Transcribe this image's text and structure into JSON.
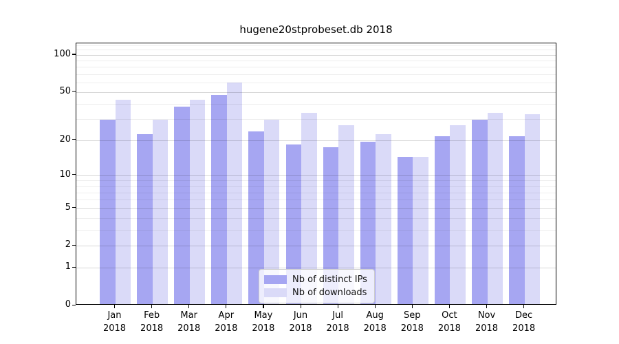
{
  "chart_data": {
    "type": "bar",
    "title": "hugene20stprobeset.db 2018",
    "categories": [
      "Jan",
      "Feb",
      "Mar",
      "Apr",
      "May",
      "Jun",
      "Jul",
      "Aug",
      "Sep",
      "Oct",
      "Nov",
      "Dec"
    ],
    "year_label": "2018",
    "series": [
      {
        "name": "Nb of distinct IPs",
        "color": "#a6a6f2",
        "values": [
          29,
          22,
          37,
          46,
          23,
          18,
          17,
          19,
          14,
          21,
          29,
          21
        ]
      },
      {
        "name": "Nb of downloads",
        "color": "#dadaf8",
        "values": [
          42,
          29,
          42,
          58,
          29,
          33,
          26,
          22,
          14,
          26,
          33,
          32
        ]
      }
    ],
    "xlabel": "",
    "ylabel": "",
    "y_axis": {
      "scale": "log1p",
      "tick_labels": [
        "100",
        "50",
        "20",
        "10",
        "5",
        "2",
        "1",
        "0"
      ],
      "tick_values": [
        100,
        50,
        20,
        10,
        5,
        2,
        1,
        0
      ],
      "major_grid_values": [
        1,
        2,
        5,
        10,
        20,
        50,
        100
      ],
      "minor_grid_values": [
        3,
        4,
        6,
        7,
        8,
        9,
        30,
        40,
        60,
        70,
        80,
        90,
        110,
        120
      ],
      "ylim": [
        0,
        124
      ]
    },
    "grid": true,
    "legend": {
      "position": "inside-bottom-center",
      "items": [
        "Nb of distinct IPs",
        "Nb of downloads"
      ]
    }
  }
}
